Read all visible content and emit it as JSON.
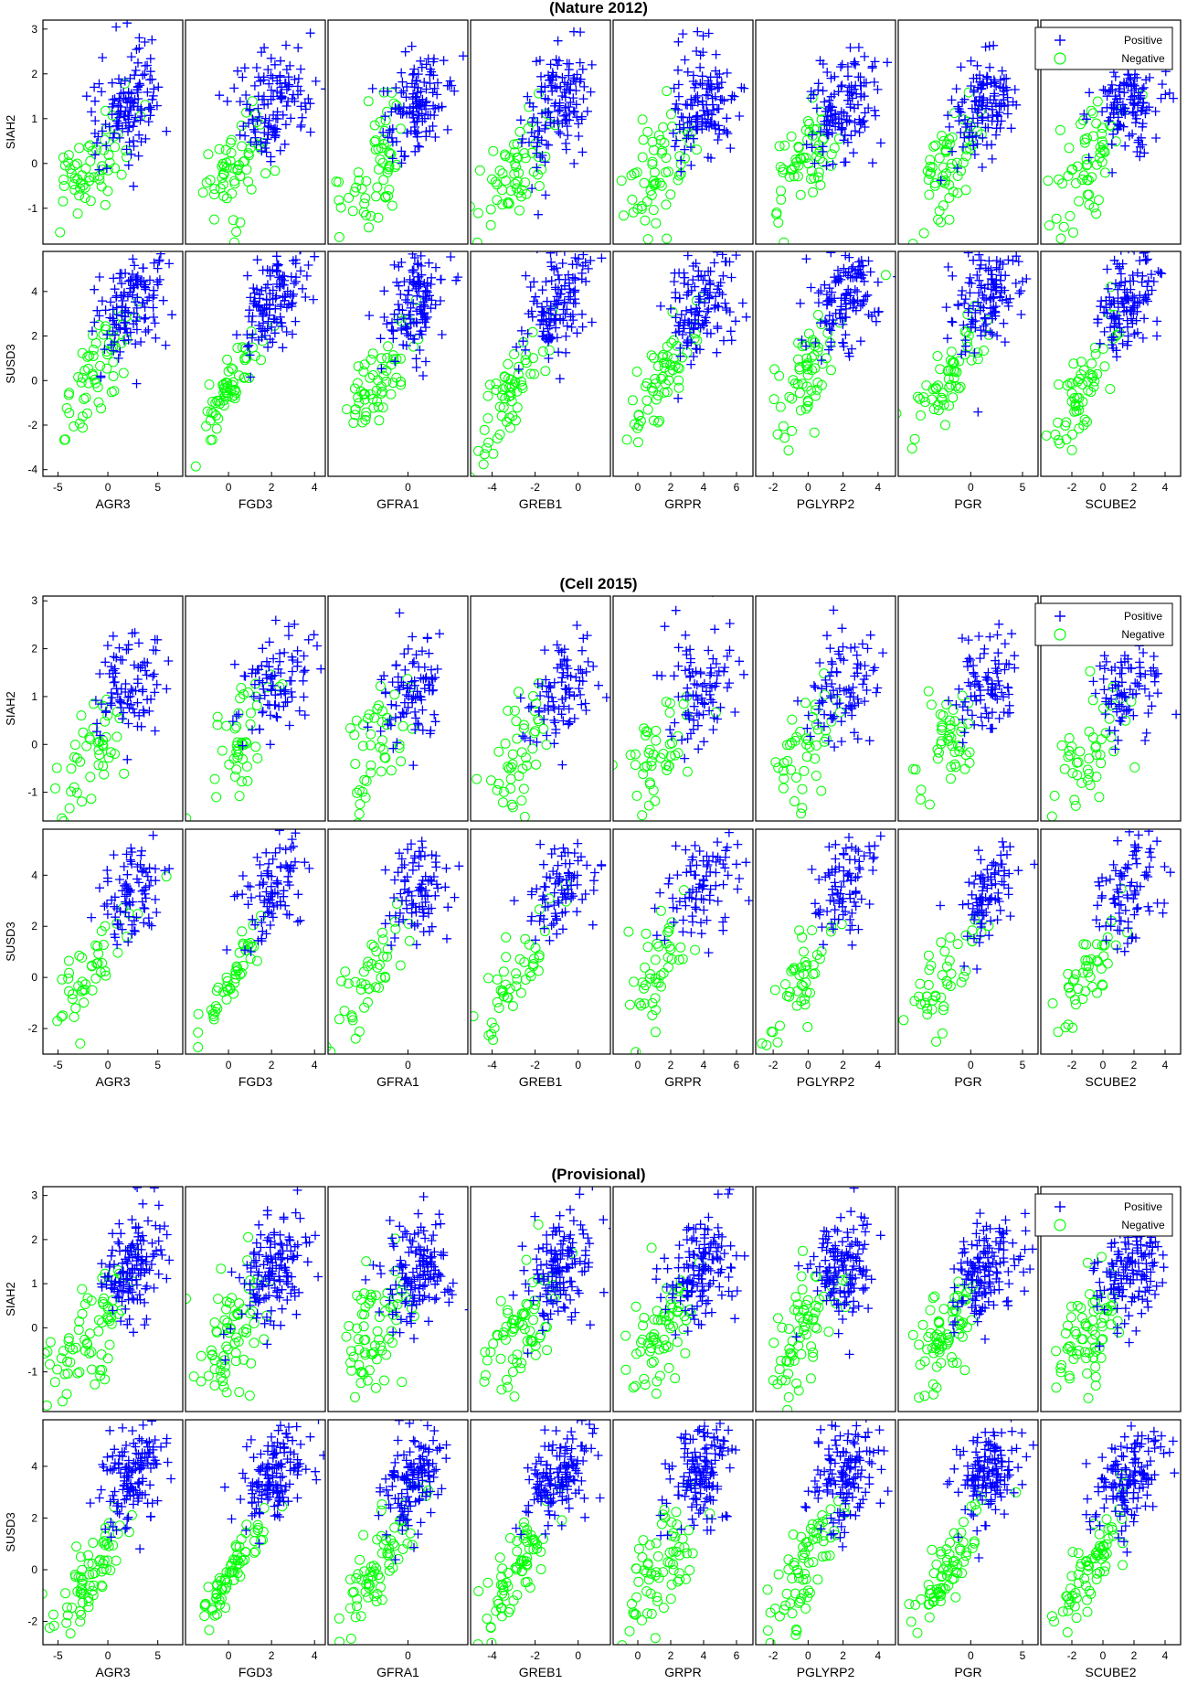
{
  "figure": {
    "panel_titles": [
      "(Nature 2012)",
      "(Cell 2015)",
      "(Provisional)"
    ],
    "legend": {
      "positive_label": "Positive",
      "negative_label": "Negative"
    },
    "colors": {
      "positive": "#0000FF",
      "negative": "#00FF00",
      "axes": "#000000"
    },
    "markers": {
      "positive": "plus",
      "negative": "circle"
    }
  },
  "chart_data": [
    {
      "type": "scatter",
      "title": "(Nature 2012)",
      "row_labels": [
        "SIAH2",
        "SUSD3"
      ],
      "column_labels": [
        "AGR3",
        "FGD3",
        "GFRA1",
        "GREB1",
        "GRPR",
        "PGLYRP2",
        "PGR",
        "SCUBE2"
      ],
      "series": [
        {
          "name": "Positive"
        },
        {
          "name": "Negative"
        }
      ],
      "legend_position": "top-right",
      "ylim": {
        "SIAH2": [
          -1.8,
          3.2
        ],
        "SUSD3": [
          -4.3,
          5.8
        ]
      },
      "yticks": {
        "SIAH2": [
          -1,
          0,
          1,
          2,
          3
        ],
        "SUSD3": [
          -4,
          -2,
          0,
          2,
          4
        ]
      },
      "xlim": {
        "AGR3": [
          -6.5,
          7.5
        ],
        "FGD3": [
          -2,
          4.5
        ],
        "GFRA1": [
          -4,
          3
        ],
        "GREB1": [
          -5,
          1.5
        ],
        "GRPR": [
          -1.5,
          7
        ],
        "PGLYRP2": [
          -3,
          5
        ],
        "PGR": [
          -7,
          6.5
        ],
        "SCUBE2": [
          -4,
          5
        ]
      },
      "xticks": {
        "AGR3": [
          "-5",
          "0",
          "5"
        ],
        "FGD3": [
          "0",
          "2",
          "4"
        ],
        "GFRA1": [
          "0"
        ],
        "GREB1": [
          "-4",
          "-2",
          "0"
        ],
        "GRPR": [
          "0",
          "2",
          "4",
          "6"
        ],
        "PGLYRP2": [
          "-2",
          "0",
          "2",
          "4"
        ],
        "PGR": [
          "0",
          "5"
        ],
        "SCUBE2": [
          "-2",
          "0",
          "2",
          "4"
        ]
      },
      "trend": {
        "SIAH2": {
          "AGR3": 0.6,
          "FGD3": 0.55,
          "GFRA1": 0.5,
          "GREB1": 0.5,
          "GRPR": 0.45,
          "PGLYRP2": 0.45,
          "PGR": 0.55,
          "SCUBE2": 0.5
        },
        "SUSD3": {
          "AGR3": 0.75,
          "FGD3": 0.9,
          "GFRA1": 0.75,
          "GREB1": 0.8,
          "GRPR": 0.65,
          "PGLYRP2": 0.7,
          "PGR": 0.8,
          "SCUBE2": 0.8
        }
      },
      "positive_center": {
        "SIAH2": 1.3,
        "SUSD3": 3.6
      },
      "negative_center": {
        "SIAH2": -0.1,
        "SUSD3": 0.0
      },
      "n_positive": 130,
      "n_negative": 60
    },
    {
      "type": "scatter",
      "title": "(Cell 2015)",
      "row_labels": [
        "SIAH2",
        "SUSD3"
      ],
      "column_labels": [
        "AGR3",
        "FGD3",
        "GFRA1",
        "GREB1",
        "GRPR",
        "PGLYRP2",
        "PGR",
        "SCUBE2"
      ],
      "series": [
        {
          "name": "Positive"
        },
        {
          "name": "Negative"
        }
      ],
      "legend_position": "top-right",
      "ylim": {
        "SIAH2": [
          -1.6,
          3.1
        ],
        "SUSD3": [
          -3.0,
          5.8
        ]
      },
      "yticks": {
        "SIAH2": [
          -1,
          0,
          1,
          2,
          3
        ],
        "SUSD3": [
          -2,
          0,
          2,
          4
        ]
      },
      "xlim": {
        "AGR3": [
          -6.5,
          7.5
        ],
        "FGD3": [
          -2,
          4.5
        ],
        "GFRA1": [
          -4,
          3
        ],
        "GREB1": [
          -5,
          1.5
        ],
        "GRPR": [
          -1.5,
          7
        ],
        "PGLYRP2": [
          -3,
          5
        ],
        "PGR": [
          -7,
          6.5
        ],
        "SCUBE2": [
          -4,
          5
        ]
      },
      "xticks": {
        "AGR3": [
          "-5",
          "0",
          "5"
        ],
        "FGD3": [
          "0",
          "2",
          "4"
        ],
        "GFRA1": [
          "0"
        ],
        "GREB1": [
          "-4",
          "-2",
          "0"
        ],
        "GRPR": [
          "0",
          "2",
          "4",
          "6"
        ],
        "PGLYRP2": [
          "-2",
          "0",
          "2",
          "4"
        ],
        "PGR": [
          "0",
          "5"
        ],
        "SCUBE2": [
          "-2",
          "0",
          "2",
          "4"
        ]
      },
      "trend": {
        "SIAH2": {
          "AGR3": 0.6,
          "FGD3": 0.55,
          "GFRA1": 0.5,
          "GREB1": 0.5,
          "GRPR": 0.45,
          "PGLYRP2": 0.45,
          "PGR": 0.55,
          "SCUBE2": 0.5
        },
        "SUSD3": {
          "AGR3": 0.75,
          "FGD3": 0.9,
          "GFRA1": 0.75,
          "GREB1": 0.8,
          "GRPR": 0.65,
          "PGLYRP2": 0.7,
          "PGR": 0.8,
          "SCUBE2": 0.8
        }
      },
      "positive_center": {
        "SIAH2": 1.2,
        "SUSD3": 3.5
      },
      "negative_center": {
        "SIAH2": -0.1,
        "SUSD3": 0.2
      },
      "n_positive": 90,
      "n_negative": 45
    },
    {
      "type": "scatter",
      "title": "(Provisional)",
      "row_labels": [
        "SIAH2",
        "SUSD3"
      ],
      "column_labels": [
        "AGR3",
        "FGD3",
        "GFRA1",
        "GREB1",
        "GRPR",
        "PGLYRP2",
        "PGR",
        "SCUBE2"
      ],
      "series": [
        {
          "name": "Positive"
        },
        {
          "name": "Negative"
        }
      ],
      "legend_position": "top-right",
      "ylim": {
        "SIAH2": [
          -1.9,
          3.2
        ],
        "SUSD3": [
          -2.9,
          5.8
        ]
      },
      "yticks": {
        "SIAH2": [
          -1,
          0,
          1,
          2,
          3
        ],
        "SUSD3": [
          -2,
          0,
          2,
          4
        ]
      },
      "xlim": {
        "AGR3": [
          -6.5,
          7.5
        ],
        "FGD3": [
          -2,
          4.5
        ],
        "GFRA1": [
          -4,
          3
        ],
        "GREB1": [
          -5,
          1.5
        ],
        "GRPR": [
          -1.5,
          7
        ],
        "PGLYRP2": [
          -3,
          5
        ],
        "PGR": [
          -7,
          6.5
        ],
        "SCUBE2": [
          -4,
          5
        ]
      },
      "xticks": {
        "AGR3": [
          "-5",
          "0",
          "5"
        ],
        "FGD3": [
          "0",
          "2",
          "4"
        ],
        "GFRA1": [
          "0"
        ],
        "GREB1": [
          "-4",
          "-2",
          "0"
        ],
        "GRPR": [
          "0",
          "2",
          "4",
          "6"
        ],
        "PGLYRP2": [
          "-2",
          "0",
          "2",
          "4"
        ],
        "PGR": [
          "0",
          "5"
        ],
        "SCUBE2": [
          "-2",
          "0",
          "2",
          "4"
        ]
      },
      "trend": {
        "SIAH2": {
          "AGR3": 0.6,
          "FGD3": 0.55,
          "GFRA1": 0.5,
          "GREB1": 0.5,
          "GRPR": 0.45,
          "PGLYRP2": 0.45,
          "PGR": 0.55,
          "SCUBE2": 0.5
        },
        "SUSD3": {
          "AGR3": 0.75,
          "FGD3": 0.9,
          "GFRA1": 0.75,
          "GREB1": 0.8,
          "GRPR": 0.65,
          "PGLYRP2": 0.7,
          "PGR": 0.8,
          "SCUBE2": 0.8
        }
      },
      "positive_center": {
        "SIAH2": 1.3,
        "SUSD3": 3.6
      },
      "negative_center": {
        "SIAH2": -0.1,
        "SUSD3": 0.0
      },
      "n_positive": 140,
      "n_negative": 70
    }
  ]
}
